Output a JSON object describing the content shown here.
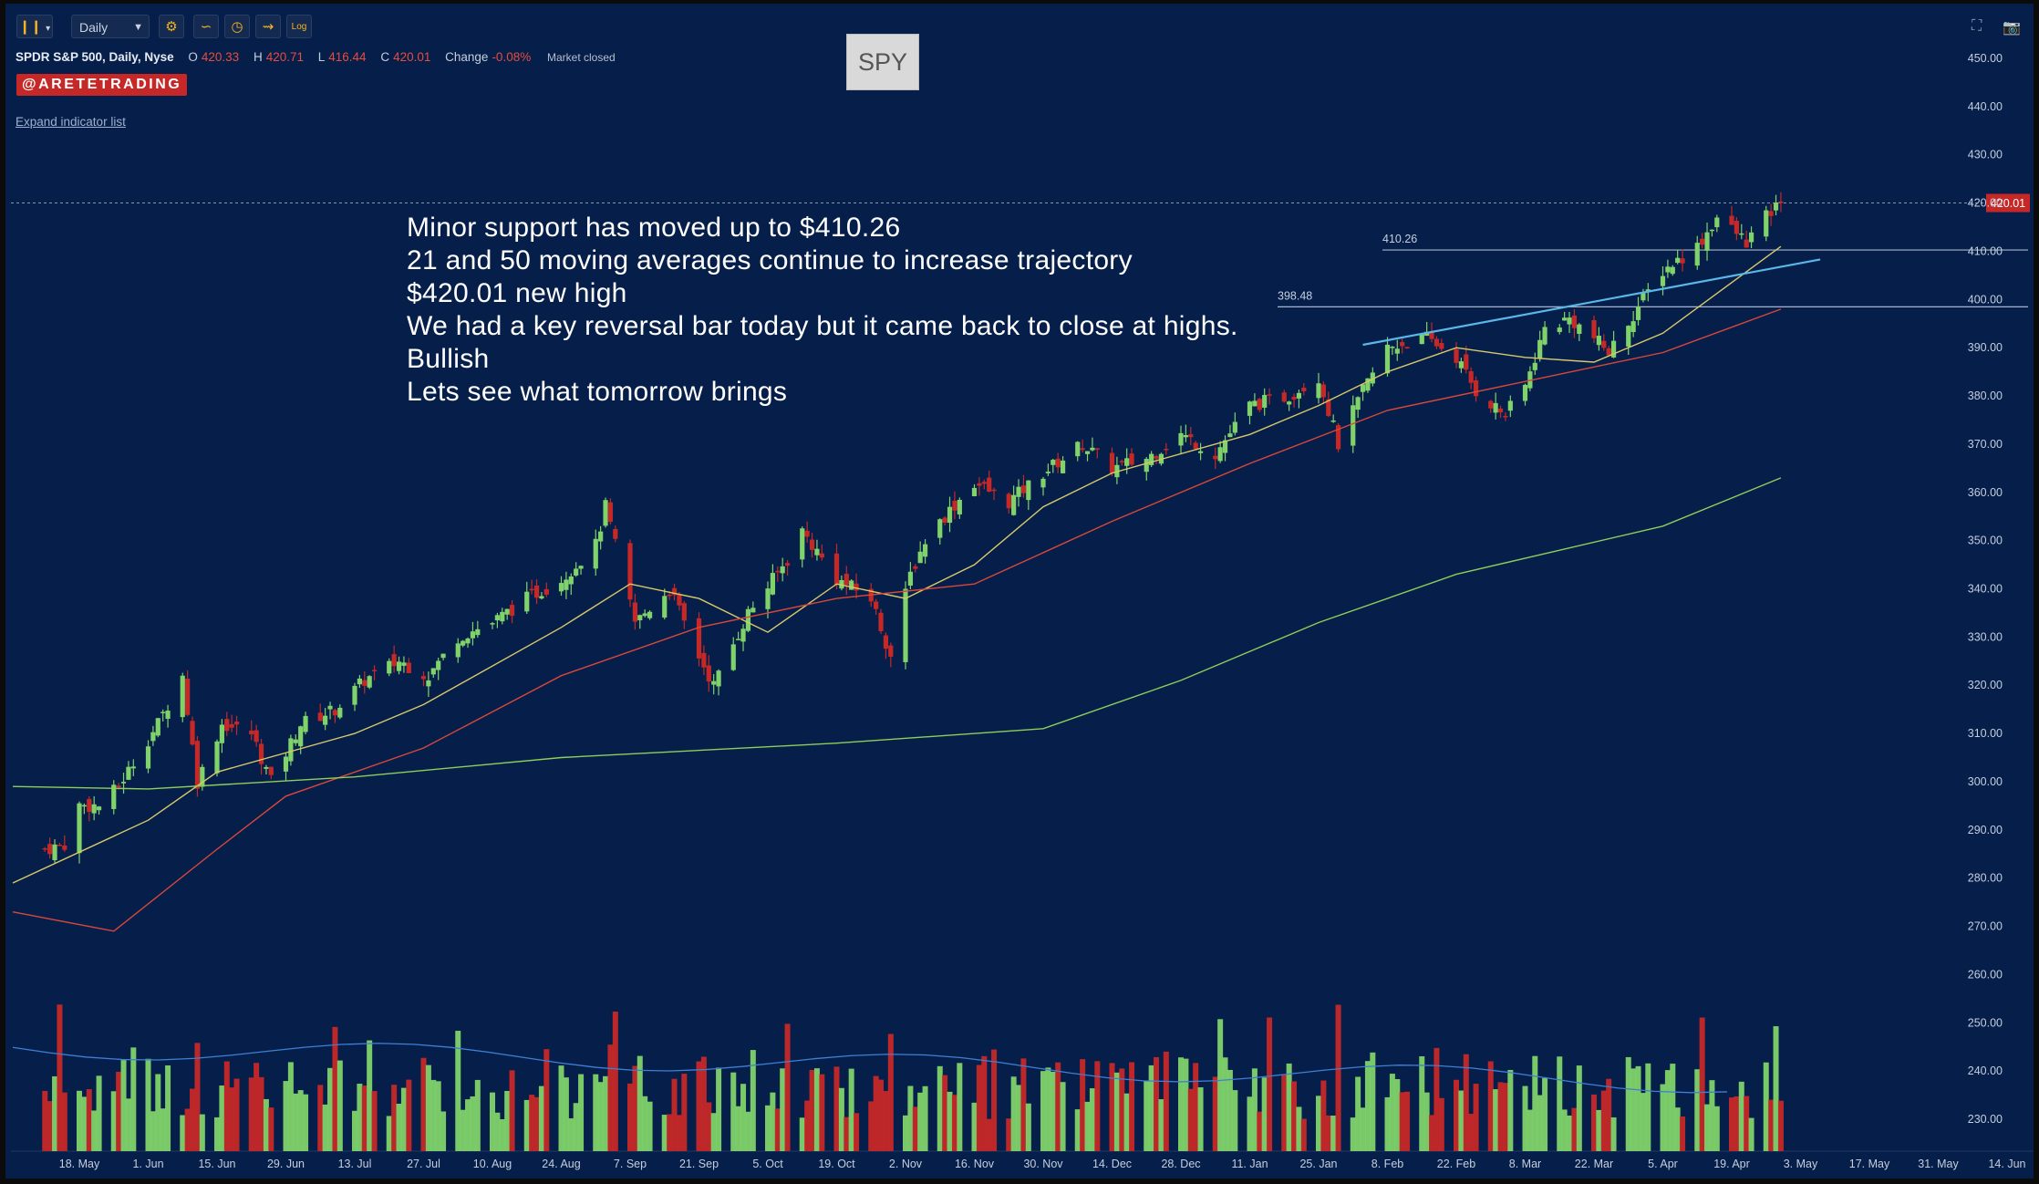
{
  "toolbar": {
    "bars_icon": "candlestick-bars-icon",
    "interval": "Daily",
    "tool_icons": [
      "settings-gear-icon",
      "indicator-icon",
      "clock-icon",
      "drawing-tool-icon",
      "log-scale-icon"
    ],
    "log_label": "Log",
    "right_icons": [
      "fullscreen-icon",
      "camera-icon"
    ]
  },
  "legend": {
    "symbol": "SPDR S&P 500, Daily, Nyse",
    "open_label": "O",
    "open": "420.33",
    "high_label": "H",
    "high": "420.71",
    "low_label": "L",
    "low": "416.44",
    "close_label": "C",
    "close": "420.01",
    "change_label": "Change",
    "change": "-0.08%",
    "status": "Market closed"
  },
  "badge": "@ARETETRADING",
  "expand_link": "Expand indicator list",
  "ticker_box": "SPY",
  "annotation": [
    "Minor support has moved up to $410.26",
    "21 and 50 moving averages continue to increase trajectory",
    "$420.01 new high",
    "We had a key reversal bar today but it came back to close at highs.",
    "Bullish",
    "Lets see what tomorrow brings"
  ],
  "colors": {
    "background": "#061f4a",
    "up": "#7fd36a",
    "down": "#c62828",
    "ma21": "#d9c96a",
    "ma50": "#d9473a",
    "ma200": "#8fce5a",
    "trendline": "#5ab7e8",
    "volume_ma": "#3f7fd4"
  },
  "chart_data": {
    "type": "candlestick",
    "symbol": "SPY",
    "interval": "Daily",
    "y_ticks": [
      "450.00",
      "440.00",
      "430.00",
      "420.00",
      "410.00",
      "400.00",
      "390.00",
      "380.00",
      "370.00",
      "360.00",
      "350.00",
      "340.00",
      "330.00",
      "320.00",
      "310.00",
      "300.00",
      "290.00",
      "280.00",
      "270.00",
      "260.00",
      "250.00",
      "240.00",
      "230.00"
    ],
    "ylim": [
      225,
      455
    ],
    "x_ticks": [
      "18. May",
      "1. Jun",
      "15. Jun",
      "29. Jun",
      "13. Jul",
      "27. Jul",
      "10. Aug",
      "24. Aug",
      "7. Sep",
      "21. Sep",
      "5. Oct",
      "19. Oct",
      "2. Nov",
      "16. Nov",
      "30. Nov",
      "14. Dec",
      "28. Dec",
      "11. Jan",
      "25. Jan",
      "8. Feb",
      "22. Feb",
      "8. Mar",
      "22. Mar",
      "5. Apr",
      "19. Apr",
      "3. May",
      "17. May",
      "31. May",
      "14. Jun"
    ],
    "last_price": "420.01",
    "horizontal_lines": [
      {
        "label": "410.26",
        "value": 410.26
      },
      {
        "label": "398.48",
        "value": 398.48
      }
    ],
    "trendline": {
      "from": {
        "date": "3. Feb",
        "value": 390.6
      },
      "to": {
        "date": "7. May",
        "value": 408.3
      }
    },
    "close_path": [
      [
        "11. May",
        286
      ],
      [
        "15. May",
        287
      ],
      [
        "18. May",
        295
      ],
      [
        "22. May",
        295
      ],
      [
        "26. May",
        299
      ],
      [
        "29. May",
        304
      ],
      [
        "3. Jun",
        312
      ],
      [
        "8. Jun",
        322
      ],
      [
        "11. Jun",
        300
      ],
      [
        "16. Jun",
        312
      ],
      [
        "22. Jun",
        310
      ],
      [
        "26. Jun",
        300
      ],
      [
        "2. Jul",
        312
      ],
      [
        "9. Jul",
        315
      ],
      [
        "15. Jul",
        321
      ],
      [
        "22. Jul",
        325
      ],
      [
        "28. Jul",
        322
      ],
      [
        "3. Aug",
        330
      ],
      [
        "10. Aug",
        333
      ],
      [
        "17. Aug",
        338
      ],
      [
        "24. Aug",
        342
      ],
      [
        "31. Aug",
        349
      ],
      [
        "2. Sep",
        357
      ],
      [
        "8. Sep",
        333
      ],
      [
        "15. Sep",
        340
      ],
      [
        "21. Sep",
        326
      ],
      [
        "24. Sep",
        320
      ],
      [
        "1. Oct",
        335
      ],
      [
        "9. Oct",
        346
      ],
      [
        "12. Oct",
        352
      ],
      [
        "19. Oct",
        342
      ],
      [
        "26. Oct",
        338
      ],
      [
        "30. Oct",
        326
      ],
      [
        "3. Nov",
        343
      ],
      [
        "6. Nov",
        350
      ],
      [
        "9. Nov",
        354
      ],
      [
        "16. Nov",
        362
      ],
      [
        "23. Nov",
        358
      ],
      [
        "30. Nov",
        364
      ],
      [
        "8. Dec",
        370
      ],
      [
        "14. Dec",
        365
      ],
      [
        "21. Dec",
        367
      ],
      [
        "28. Dec",
        372
      ],
      [
        "4. Jan",
        368
      ],
      [
        "11. Jan",
        378
      ],
      [
        "19. Jan",
        380
      ],
      [
        "25. Jan",
        384
      ],
      [
        "29. Jan",
        370
      ],
      [
        "3. Feb",
        381
      ],
      [
        "8. Feb",
        390
      ],
      [
        "16. Feb",
        392
      ],
      [
        "22. Feb",
        388
      ],
      [
        "26. Feb",
        381
      ],
      [
        "4. Mar",
        376
      ],
      [
        "8. Mar",
        382
      ],
      [
        "12. Mar",
        394
      ],
      [
        "17. Mar",
        396
      ],
      [
        "22. Mar",
        392
      ],
      [
        "25. Mar",
        389
      ],
      [
        "1. Apr",
        400
      ],
      [
        "5. Apr",
        406
      ],
      [
        "12. Apr",
        411
      ],
      [
        "16. Apr",
        417
      ],
      [
        "22. Apr",
        412
      ],
      [
        "26. Apr",
        417
      ],
      [
        "29. Apr",
        420.01
      ]
    ],
    "moving_averages": [
      {
        "name": "MA 21",
        "points": [
          [
            "11. May",
            279
          ],
          [
            "1. Jun",
            292
          ],
          [
            "15. Jun",
            302
          ],
          [
            "13. Jul",
            310
          ],
          [
            "27. Jul",
            316
          ],
          [
            "24. Aug",
            332
          ],
          [
            "7. Sep",
            341
          ],
          [
            "21. Sep",
            338
          ],
          [
            "5. Oct",
            331
          ],
          [
            "19. Oct",
            341
          ],
          [
            "2. Nov",
            338
          ],
          [
            "16. Nov",
            345
          ],
          [
            "30. Nov",
            357
          ],
          [
            "14. Dec",
            364
          ],
          [
            "11. Jan",
            372
          ],
          [
            "25. Jan",
            378
          ],
          [
            "8. Feb",
            385
          ],
          [
            "22. Feb",
            390
          ],
          [
            "8. Mar",
            388
          ],
          [
            "22. Mar",
            387
          ],
          [
            "5. Apr",
            393
          ],
          [
            "29. Apr",
            411
          ]
        ]
      },
      {
        "name": "MA 50",
        "points": [
          [
            "11. May",
            273
          ],
          [
            "25. May",
            269
          ],
          [
            "15. Jun",
            286
          ],
          [
            "29. Jun",
            297
          ],
          [
            "27. Jul",
            307
          ],
          [
            "24. Aug",
            322
          ],
          [
            "21. Sep",
            332
          ],
          [
            "19. Oct",
            338
          ],
          [
            "16. Nov",
            341
          ],
          [
            "14. Dec",
            354
          ],
          [
            "11. Jan",
            366
          ],
          [
            "8. Feb",
            377
          ],
          [
            "8. Mar",
            383
          ],
          [
            "5. Apr",
            389
          ],
          [
            "29. Apr",
            398
          ]
        ]
      },
      {
        "name": "MA 200",
        "points": [
          [
            "11. May",
            299
          ],
          [
            "1. Jun",
            298.5
          ],
          [
            "13. Jul",
            301
          ],
          [
            "24. Aug",
            305
          ],
          [
            "19. Oct",
            308
          ],
          [
            "30. Nov",
            311
          ],
          [
            "28. Dec",
            321
          ],
          [
            "25. Jan",
            333
          ],
          [
            "22. Feb",
            343
          ],
          [
            "5. Apr",
            353
          ],
          [
            "29. Apr",
            363
          ]
        ]
      }
    ]
  }
}
